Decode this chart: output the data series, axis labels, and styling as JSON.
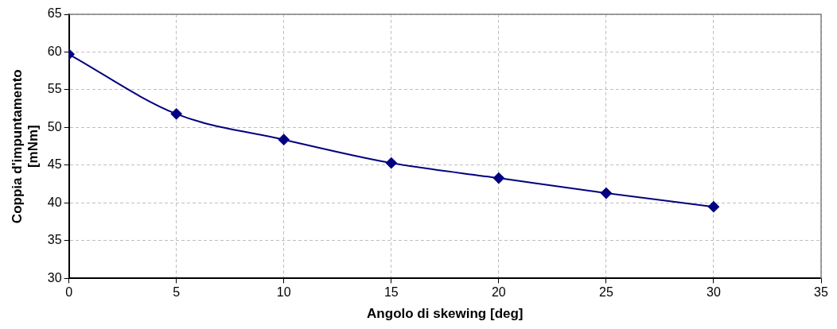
{
  "chart_data": {
    "type": "line",
    "xlabel": "Angolo di skewing [deg]",
    "ylabel": "Coppia d'impuntamento\n[mNm]",
    "x": [
      0,
      5,
      10,
      15,
      20,
      25,
      30
    ],
    "series": [
      {
        "color": "#000080",
        "values": [
          59.7,
          51.8,
          48.4,
          45.3,
          43.3,
          41.3,
          39.5
        ]
      }
    ],
    "xlim": [
      0,
      35
    ],
    "xticks": [
      0,
      5,
      10,
      15,
      20,
      25,
      30,
      35
    ],
    "ylim": [
      30,
      65
    ],
    "yticks": [
      30,
      35,
      40,
      45,
      50,
      55,
      60,
      65
    ],
    "grid": true,
    "legend": false,
    "marker": "diamond",
    "line_style": "solid"
  }
}
